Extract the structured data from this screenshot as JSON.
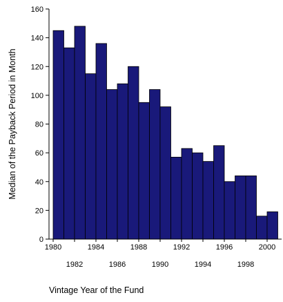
{
  "chart_data": {
    "type": "bar",
    "title": "",
    "xlabel": "Vintage Year of the Fund",
    "ylabel": "Median of the Payback Period in Month",
    "ylim": [
      0,
      160
    ],
    "yticks": [
      0,
      20,
      40,
      60,
      80,
      100,
      120,
      140,
      160
    ],
    "categories": [
      "1980",
      "1981",
      "1982",
      "1983",
      "1984",
      "1985",
      "1986",
      "1987",
      "1988",
      "1989",
      "1990",
      "1991",
      "1992",
      "1993",
      "1994",
      "1995",
      "1996",
      "1997",
      "1998",
      "1999",
      "2000"
    ],
    "values": [
      145,
      133,
      148,
      115,
      136,
      104,
      108,
      120,
      95,
      104,
      92,
      57,
      63,
      60,
      54,
      65,
      40,
      44,
      44,
      16,
      19
    ],
    "xtick_labels_top": [
      "1980",
      "1984",
      "1988",
      "1992",
      "1996",
      "2000"
    ],
    "xtick_labels_bottom": [
      "1982",
      "1986",
      "1990",
      "1994",
      "1998"
    ],
    "grid": false,
    "legend": "none",
    "colors": {
      "bar_fill": "#19197a",
      "bar_edge": "#000000",
      "axis": "#000000"
    }
  }
}
